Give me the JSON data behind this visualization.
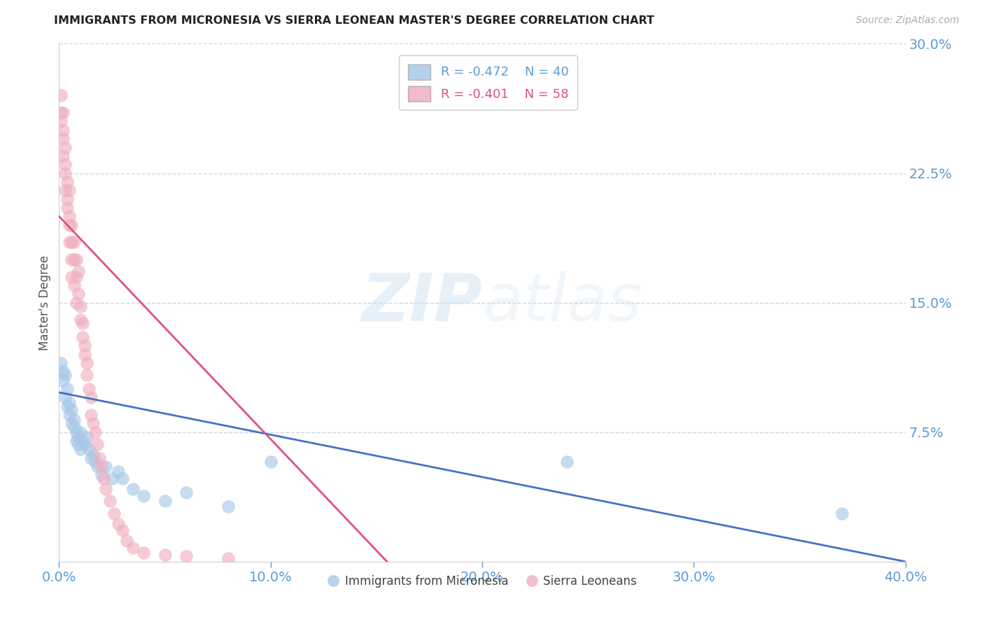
{
  "title": "IMMIGRANTS FROM MICRONESIA VS SIERRA LEONEAN MASTER'S DEGREE CORRELATION CHART",
  "source": "Source: ZipAtlas.com",
  "ylabel_left": "Master's Degree",
  "legend_blue_r": "R = -0.472",
  "legend_blue_n": "N = 40",
  "legend_pink_r": "R = -0.401",
  "legend_pink_n": "N = 58",
  "legend_blue_label": "Immigrants from Micronesia",
  "legend_pink_label": "Sierra Leoneans",
  "xlim": [
    0.0,
    0.4
  ],
  "ylim": [
    0.0,
    0.3
  ],
  "yticks_right": [
    0.075,
    0.15,
    0.225,
    0.3
  ],
  "ytick_labels_right": [
    "7.5%",
    "15.0%",
    "22.5%",
    "30.0%"
  ],
  "xtick_labels": [
    "0.0%",
    "10.0%",
    "20.0%",
    "30.0%",
    "40.0%"
  ],
  "blue_color": "#a8c8e8",
  "pink_color": "#f0b0c0",
  "blue_line_color": "#4472c4",
  "pink_line_color": "#e05080",
  "axis_color": "#5b9bd5",
  "grid_color": "#c8d8e8",
  "background_color": "#ffffff",
  "watermark_zip": "ZIP",
  "watermark_atlas": "atlas",
  "blue_scatter_x": [
    0.001,
    0.002,
    0.002,
    0.003,
    0.003,
    0.004,
    0.004,
    0.005,
    0.005,
    0.006,
    0.006,
    0.007,
    0.007,
    0.008,
    0.008,
    0.009,
    0.009,
    0.01,
    0.01,
    0.011,
    0.012,
    0.013,
    0.014,
    0.015,
    0.016,
    0.017,
    0.018,
    0.02,
    0.022,
    0.025,
    0.028,
    0.03,
    0.035,
    0.04,
    0.05,
    0.06,
    0.08,
    0.1,
    0.24,
    0.37
  ],
  "blue_scatter_y": [
    0.115,
    0.11,
    0.105,
    0.108,
    0.095,
    0.1,
    0.09,
    0.085,
    0.092,
    0.088,
    0.08,
    0.082,
    0.078,
    0.075,
    0.07,
    0.072,
    0.068,
    0.065,
    0.075,
    0.07,
    0.068,
    0.072,
    0.065,
    0.06,
    0.062,
    0.058,
    0.055,
    0.05,
    0.055,
    0.048,
    0.052,
    0.048,
    0.042,
    0.038,
    0.035,
    0.04,
    0.032,
    0.058,
    0.058,
    0.028
  ],
  "pink_scatter_x": [
    0.001,
    0.001,
    0.001,
    0.002,
    0.002,
    0.002,
    0.002,
    0.003,
    0.003,
    0.003,
    0.003,
    0.004,
    0.004,
    0.004,
    0.005,
    0.005,
    0.005,
    0.005,
    0.006,
    0.006,
    0.006,
    0.006,
    0.007,
    0.007,
    0.007,
    0.008,
    0.008,
    0.008,
    0.009,
    0.009,
    0.01,
    0.01,
    0.011,
    0.011,
    0.012,
    0.012,
    0.013,
    0.013,
    0.014,
    0.015,
    0.015,
    0.016,
    0.017,
    0.018,
    0.019,
    0.02,
    0.021,
    0.022,
    0.024,
    0.026,
    0.028,
    0.03,
    0.032,
    0.035,
    0.04,
    0.05,
    0.06,
    0.08
  ],
  "pink_scatter_y": [
    0.27,
    0.26,
    0.255,
    0.26,
    0.25,
    0.245,
    0.235,
    0.24,
    0.23,
    0.225,
    0.215,
    0.22,
    0.21,
    0.205,
    0.215,
    0.2,
    0.195,
    0.185,
    0.195,
    0.185,
    0.175,
    0.165,
    0.185,
    0.175,
    0.16,
    0.175,
    0.165,
    0.15,
    0.168,
    0.155,
    0.148,
    0.14,
    0.138,
    0.13,
    0.125,
    0.12,
    0.115,
    0.108,
    0.1,
    0.095,
    0.085,
    0.08,
    0.075,
    0.068,
    0.06,
    0.055,
    0.048,
    0.042,
    0.035,
    0.028,
    0.022,
    0.018,
    0.012,
    0.008,
    0.005,
    0.004,
    0.003,
    0.002
  ],
  "blue_line_x0": 0.0,
  "blue_line_x1": 0.4,
  "blue_line_y0": 0.098,
  "blue_line_y1": 0.0,
  "pink_line_x0": 0.0,
  "pink_line_x1": 0.155,
  "pink_line_y0": 0.2,
  "pink_line_y1": 0.0
}
